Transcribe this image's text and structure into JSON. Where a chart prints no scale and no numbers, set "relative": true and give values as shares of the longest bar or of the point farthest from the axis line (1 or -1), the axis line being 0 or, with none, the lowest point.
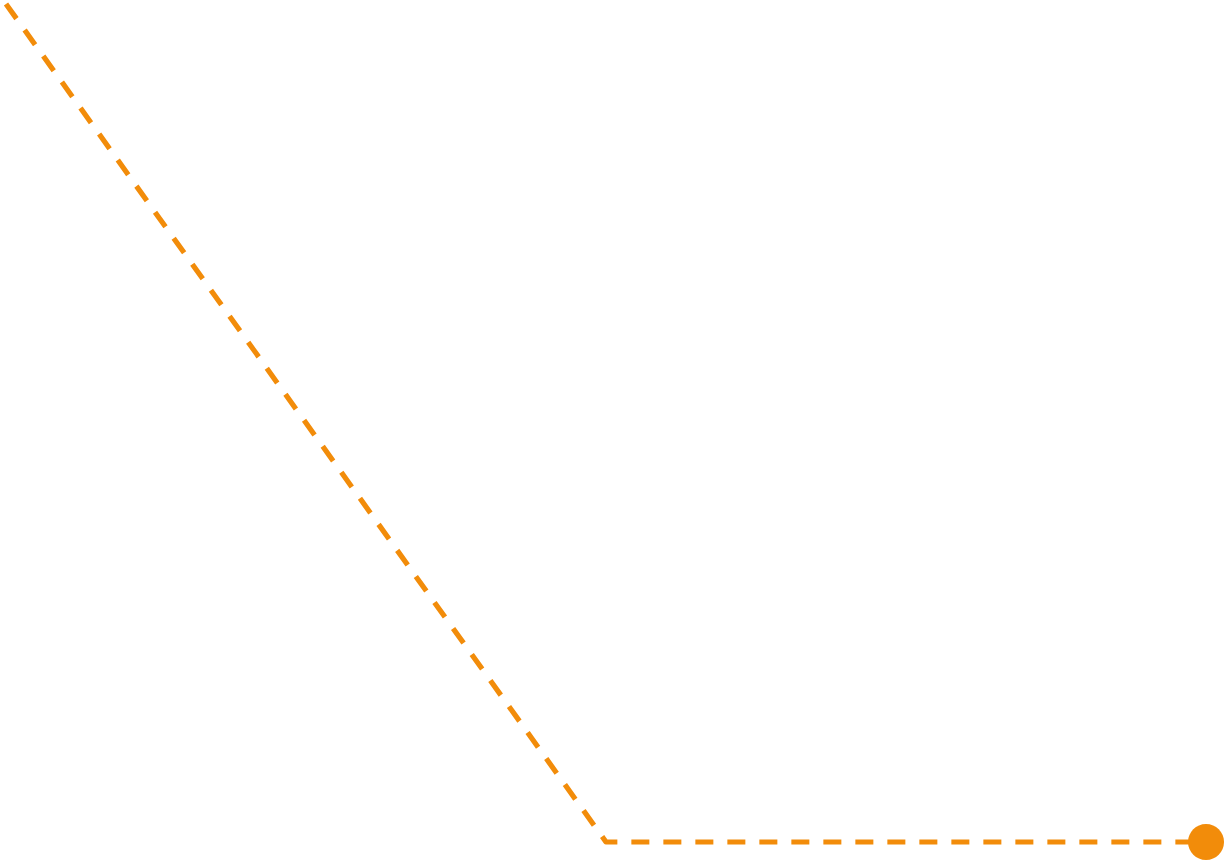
{
  "chart_data": {
    "type": "line",
    "relative": true,
    "categories": [
      null,
      null,
      null
    ],
    "line_style": "dashed",
    "series": [
      {
        "color": "#f28c0a",
        "values": [
          1,
          0,
          0
        ]
      }
    ]
  }
}
